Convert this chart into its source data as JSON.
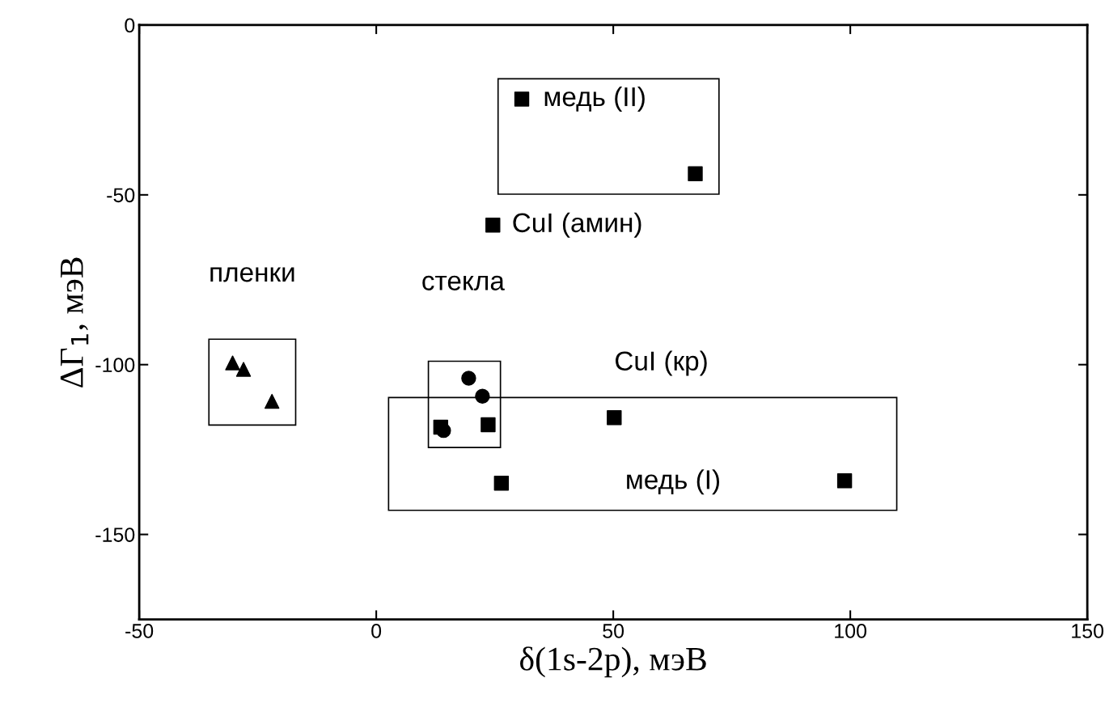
{
  "chart_data": {
    "type": "scatter",
    "xlabel": "δ(1s-2p), мэВ",
    "ylabel": "ΔΓ$_{1}$, мэВ",
    "xlim": [
      -50,
      150
    ],
    "xticks": [
      -50,
      0,
      50,
      100,
      150
    ],
    "ylim": [
      -175,
      0
    ],
    "yticks": [
      0,
      -50,
      -100,
      -150
    ],
    "grid": false,
    "legend": false,
    "series": [
      {
        "name": "медь (II)",
        "x": [
          30.7,
          67.3
        ],
        "values": [
          -21.8,
          -43.8
        ],
        "color": "#000000",
        "marker": "square"
      },
      {
        "name": "CuI (амин)",
        "x": [
          24.6
        ],
        "values": [
          -58.9
        ],
        "color": "#000000",
        "marker": "square"
      },
      {
        "x": [
          13.6,
          23.6
        ],
        "values": [
          -118.4,
          -117.7
        ],
        "color": "#000000",
        "marker": "square"
      },
      {
        "x": [
          19.5,
          22.4,
          14.2
        ],
        "values": [
          -104,
          -109.3,
          -119.4
        ],
        "color": "#000000",
        "marker": "circle"
      },
      {
        "name": "пленки",
        "x": [
          -30.3,
          -28,
          -22
        ],
        "values": [
          -99.5,
          -101.4,
          -110.8
        ],
        "color": "#000000",
        "marker": "triangle"
      },
      {
        "name": "CuI (кр)",
        "x": [
          50.2
        ],
        "values": [
          -115.6
        ],
        "color": "#000000",
        "marker": "square"
      },
      {
        "x": [
          26.4,
          98.8
        ],
        "values": [
          -134.9,
          -134.2
        ],
        "color": "#000000",
        "marker": "square"
      }
    ],
    "annotations": [
      "стекла",
      "медь (I)"
    ]
  }
}
